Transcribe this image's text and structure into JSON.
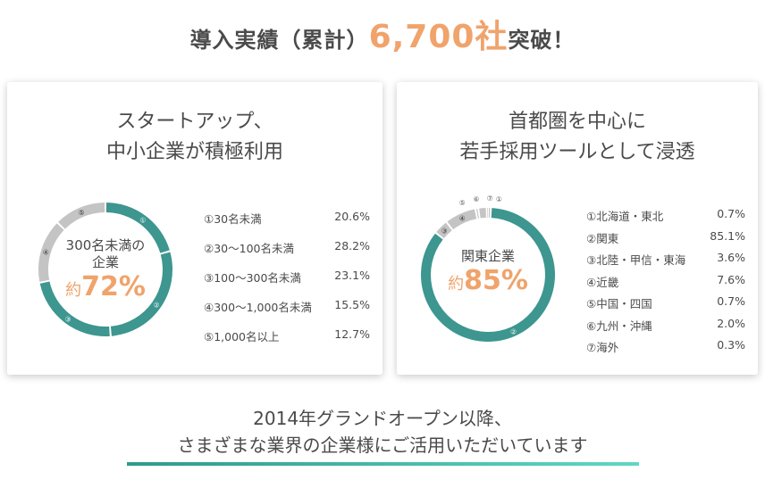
{
  "headline": {
    "prefix": "導入実績（累計）",
    "count": "6,700社",
    "suffix": "突破！"
  },
  "colors": {
    "teal": "#3d968f",
    "gray": "#c4c4c4",
    "accent": "#f0a36b"
  },
  "left_card": {
    "title_line1": "スタートアップ、",
    "title_line2": "中小企業が積極利用",
    "center_line1": "300名未満の",
    "center_line2": "企業",
    "center_prefix": "約",
    "center_value": "72%"
  },
  "right_card": {
    "title_line1": "首都圏を中心に",
    "title_line2": "若手採用ツールとして浸透",
    "center_line1": "関東企業",
    "center_prefix": "約",
    "center_value": "85%"
  },
  "chart_data": [
    {
      "type": "pie",
      "categories": [
        "①30名未満",
        "②30～100名未満",
        "③100～300名未満",
        "④300～1,000名未満",
        "⑤1,000名以上"
      ],
      "values": [
        20.6,
        28.2,
        23.1,
        15.5,
        12.7
      ],
      "value_labels": [
        "20.6%",
        "28.2%",
        "23.1%",
        "15.5%",
        "12.7%"
      ],
      "slice_markers": [
        "①",
        "②",
        "③",
        "④",
        "⑤"
      ],
      "slice_colors": [
        "#3d968f",
        "#3d968f",
        "#3d968f",
        "#c4c4c4",
        "#c4c4c4"
      ]
    },
    {
      "type": "pie",
      "categories": [
        "①北海道・東北",
        "②関東",
        "③北陸・甲信・東海",
        "④近畿",
        "⑤中国・四国",
        "⑥九州・沖縄",
        "⑦海外"
      ],
      "values": [
        0.7,
        85.1,
        3.6,
        7.6,
        0.7,
        2.0,
        0.3
      ],
      "value_labels": [
        "0.7%",
        "85.1%",
        "3.6%",
        "7.6%",
        "0.7%",
        "2.0%",
        "0.3%"
      ],
      "slice_markers": [
        "①",
        "②",
        "③",
        "④",
        "⑤",
        "⑥",
        "⑦"
      ],
      "slice_colors": [
        "#c4c4c4",
        "#3d968f",
        "#c4c4c4",
        "#c4c4c4",
        "#c4c4c4",
        "#c4c4c4",
        "#c4c4c4"
      ]
    }
  ],
  "footer": {
    "line1": "2014年グランドオープン以降、",
    "line2": "さまざまな業界の企業様にご活用いただいています"
  }
}
